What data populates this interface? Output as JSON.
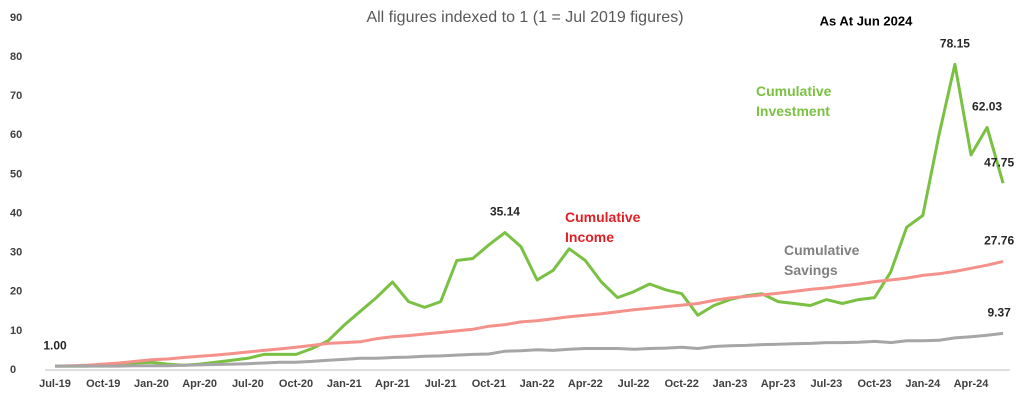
{
  "chart_data": {
    "type": "line",
    "title": "All figures indexed to 1 (1 = Jul 2019 figures)",
    "annotation": "As At Jun 2024",
    "categories": [
      "Jul-19",
      null,
      null,
      "Oct-19",
      null,
      null,
      "Jan-20",
      null,
      null,
      "Apr-20",
      null,
      null,
      "Jul-20",
      null,
      null,
      "Oct-20",
      null,
      null,
      "Jan-21",
      null,
      null,
      "Apr-21",
      null,
      null,
      "Jul-21",
      null,
      null,
      "Oct-21",
      null,
      null,
      "Jan-22",
      null,
      null,
      "Apr-22",
      null,
      null,
      "Jul-22",
      null,
      null,
      "Oct-22",
      null,
      null,
      "Jan-23",
      null,
      null,
      "Apr-23",
      null,
      null,
      "Jul-23",
      null,
      null,
      "Oct-23",
      null,
      null,
      "Jan-24",
      null,
      null,
      "Apr-24",
      null,
      null
    ],
    "ylim": [
      0,
      90
    ],
    "yticks": [
      0,
      10,
      20,
      30,
      40,
      50,
      60,
      70,
      80,
      90
    ],
    "grid": false,
    "series": [
      {
        "name": "Cumulative Investment",
        "color": "#7ac143",
        "values": [
          1.0,
          1.0,
          1.0,
          1.2,
          1.5,
          1.8,
          2.0,
          1.5,
          1.2,
          1.5,
          2.0,
          2.5,
          3.0,
          4.0,
          4.0,
          4.0,
          5.5,
          7.5,
          11.5,
          15.0,
          18.5,
          22.5,
          17.5,
          16.0,
          17.5,
          28.0,
          28.5,
          32.0,
          35.14,
          31.5,
          23.0,
          25.5,
          31.0,
          28.0,
          22.5,
          18.5,
          20.0,
          22.0,
          20.5,
          19.5,
          14.0,
          16.5,
          18.0,
          19.0,
          19.5,
          17.5,
          17.0,
          16.5,
          18.0,
          17.0,
          18.0,
          18.5,
          25.0,
          36.5,
          39.5,
          60.0,
          78.15,
          55.0,
          62.03,
          47.75
        ],
        "value_labels": [
          "1.00",
          null,
          null,
          null,
          null,
          null,
          null,
          null,
          null,
          null,
          null,
          null,
          null,
          null,
          null,
          null,
          null,
          null,
          null,
          null,
          null,
          null,
          null,
          null,
          null,
          null,
          null,
          null,
          "35.14",
          null,
          null,
          null,
          null,
          null,
          null,
          null,
          null,
          null,
          null,
          null,
          null,
          null,
          null,
          null,
          null,
          null,
          null,
          null,
          null,
          null,
          null,
          null,
          null,
          null,
          null,
          null,
          "78.15",
          null,
          "62.03",
          "47.75"
        ]
      },
      {
        "name": "Cumulative Income",
        "color": "#f4918a",
        "values": [
          1.0,
          1.1,
          1.2,
          1.5,
          1.8,
          2.2,
          2.6,
          2.8,
          3.2,
          3.5,
          3.8,
          4.2,
          4.6,
          5.0,
          5.4,
          5.8,
          6.3,
          6.8,
          7.0,
          7.2,
          8.0,
          8.5,
          8.8,
          9.2,
          9.6,
          10.0,
          10.4,
          11.2,
          11.6,
          12.3,
          12.6,
          13.1,
          13.6,
          14.0,
          14.4,
          14.9,
          15.4,
          15.8,
          16.2,
          16.6,
          17.0,
          17.8,
          18.4,
          18.8,
          19.2,
          19.6,
          20.1,
          20.6,
          21.0,
          21.5,
          22.0,
          22.6,
          23.0,
          23.5,
          24.2,
          24.6,
          25.2,
          26.0,
          26.8,
          27.76
        ],
        "value_labels": [
          null,
          null,
          null,
          null,
          null,
          null,
          null,
          null,
          null,
          null,
          null,
          null,
          null,
          null,
          null,
          null,
          null,
          null,
          null,
          null,
          null,
          null,
          null,
          null,
          null,
          null,
          null,
          null,
          null,
          null,
          null,
          null,
          null,
          null,
          null,
          null,
          null,
          null,
          null,
          null,
          null,
          null,
          null,
          null,
          null,
          null,
          null,
          null,
          null,
          null,
          null,
          null,
          null,
          null,
          null,
          null,
          null,
          null,
          null,
          "27.76"
        ]
      },
      {
        "name": "Cumulative Savings",
        "color": "#a6a6a6",
        "values": [
          1.0,
          1.0,
          1.0,
          1.0,
          1.0,
          1.1,
          1.1,
          1.1,
          1.2,
          1.3,
          1.4,
          1.5,
          1.6,
          1.8,
          2.0,
          2.0,
          2.2,
          2.5,
          2.7,
          3.0,
          3.0,
          3.2,
          3.3,
          3.5,
          3.6,
          3.8,
          4.0,
          4.1,
          4.8,
          4.9,
          5.2,
          5.0,
          5.3,
          5.5,
          5.5,
          5.5,
          5.3,
          5.5,
          5.6,
          5.8,
          5.5,
          6.0,
          6.2,
          6.3,
          6.5,
          6.6,
          6.7,
          6.8,
          7.0,
          7.0,
          7.1,
          7.3,
          7.0,
          7.5,
          7.5,
          7.6,
          8.2,
          8.5,
          8.9,
          9.37
        ],
        "value_labels": [
          null,
          null,
          null,
          null,
          null,
          null,
          null,
          null,
          null,
          null,
          null,
          null,
          null,
          null,
          null,
          null,
          null,
          null,
          null,
          null,
          null,
          null,
          null,
          null,
          null,
          null,
          null,
          null,
          null,
          null,
          null,
          null,
          null,
          null,
          null,
          null,
          null,
          null,
          null,
          null,
          null,
          null,
          null,
          null,
          null,
          null,
          null,
          null,
          null,
          null,
          null,
          null,
          null,
          null,
          null,
          null,
          null,
          null,
          null,
          "9.37"
        ]
      }
    ]
  }
}
